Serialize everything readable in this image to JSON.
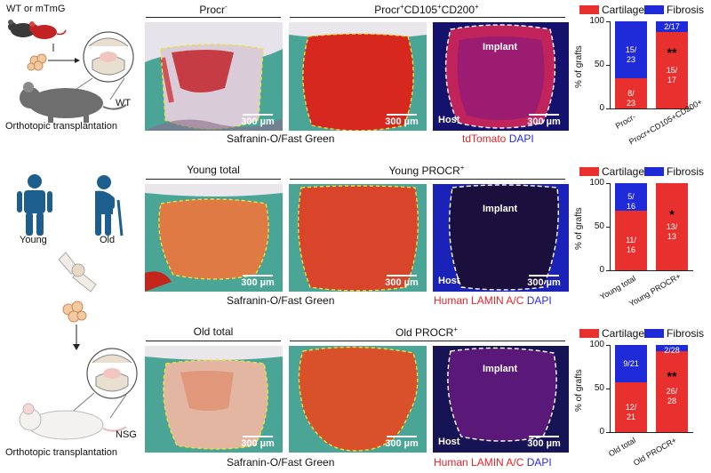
{
  "left": {
    "row1_tag": "WT or mTmG",
    "row1_wt": "WT",
    "row1_caption": "Orthotopic transplantation",
    "young": "Young",
    "old": "Old",
    "nsg": "NSG",
    "row3_caption": "Orthotopic transplantation"
  },
  "rows": [
    {
      "head_left_main": "Procr",
      "head_left_sup": "-",
      "head_right_html_main": "Procr",
      "head_right_parts": [
        "Procr",
        "+",
        "CD105",
        "+",
        "CD200",
        "+"
      ],
      "scale": "300 µm",
      "safranin": "Safranin-O/Fast Green",
      "fluor_red": "tdTomato",
      "fluor_blue": "DAPI",
      "implant": "Implant",
      "host": "Host"
    },
    {
      "head_left": "Young total",
      "head_right_main": "Young PROCR",
      "head_right_sup": "+",
      "scale": "300 µm",
      "safranin": "Safranin-O/Fast Green",
      "fluor_red": "Human LAMIN A/C",
      "fluor_blue": "DAPI",
      "implant": "Implant",
      "host": "Host"
    },
    {
      "head_left": "Old total",
      "head_right_main": "Old PROCR",
      "head_right_sup": "+",
      "scale": "300 µm",
      "safranin": "Safranin-O/Fast Green",
      "fluor_red": "Human LAMIN A/C",
      "fluor_blue": "DAPI",
      "implant": "Implant",
      "host": "Host"
    }
  ],
  "chart_data": [
    {
      "type": "bar",
      "stacked": true,
      "categories": [
        "Procr-",
        "Procr+CD105+CD200+"
      ],
      "series": [
        {
          "name": "Cartilage",
          "color": "#e8312e",
          "values": [
            34.8,
            88.2
          ],
          "labels": [
            "8/\n23",
            "15/\n17"
          ]
        },
        {
          "name": "Fibrosis",
          "color": "#1f2bd9",
          "values": [
            65.2,
            11.8
          ],
          "labels": [
            "15/\n23",
            "2/17"
          ]
        }
      ],
      "ylabel": "% of grafts",
      "ylim": [
        0,
        100
      ],
      "yticks": [
        0,
        50,
        100
      ],
      "significance": [
        "",
        "**"
      ],
      "legend": "top"
    },
    {
      "type": "bar",
      "stacked": true,
      "categories": [
        "Young total",
        "Young PROCR+"
      ],
      "series": [
        {
          "name": "Cartilage",
          "color": "#e8312e",
          "values": [
            68.75,
            100
          ],
          "labels": [
            "11/\n16",
            "13/\n13"
          ]
        },
        {
          "name": "Fibrosis",
          "color": "#1f2bd9",
          "values": [
            31.25,
            0
          ],
          "labels": [
            "5/\n16",
            ""
          ]
        }
      ],
      "ylabel": "% of grafts",
      "ylim": [
        0,
        100
      ],
      "yticks": [
        0,
        50,
        100
      ],
      "significance": [
        "",
        "*"
      ],
      "legend": "top"
    },
    {
      "type": "bar",
      "stacked": true,
      "categories": [
        "Old total",
        "Old PROCR+"
      ],
      "series": [
        {
          "name": "Cartilage",
          "color": "#e8312e",
          "values": [
            57.1,
            92.9
          ],
          "labels": [
            "12/\n21",
            "26/\n28"
          ]
        },
        {
          "name": "Fibrosis",
          "color": "#1f2bd9",
          "values": [
            42.9,
            7.1
          ],
          "labels": [
            "9/21",
            "2/28"
          ]
        }
      ],
      "ylabel": "% of grafts",
      "ylim": [
        0,
        100
      ],
      "yticks": [
        0,
        50,
        100
      ],
      "significance": [
        "",
        "**"
      ],
      "legend": "top"
    }
  ]
}
